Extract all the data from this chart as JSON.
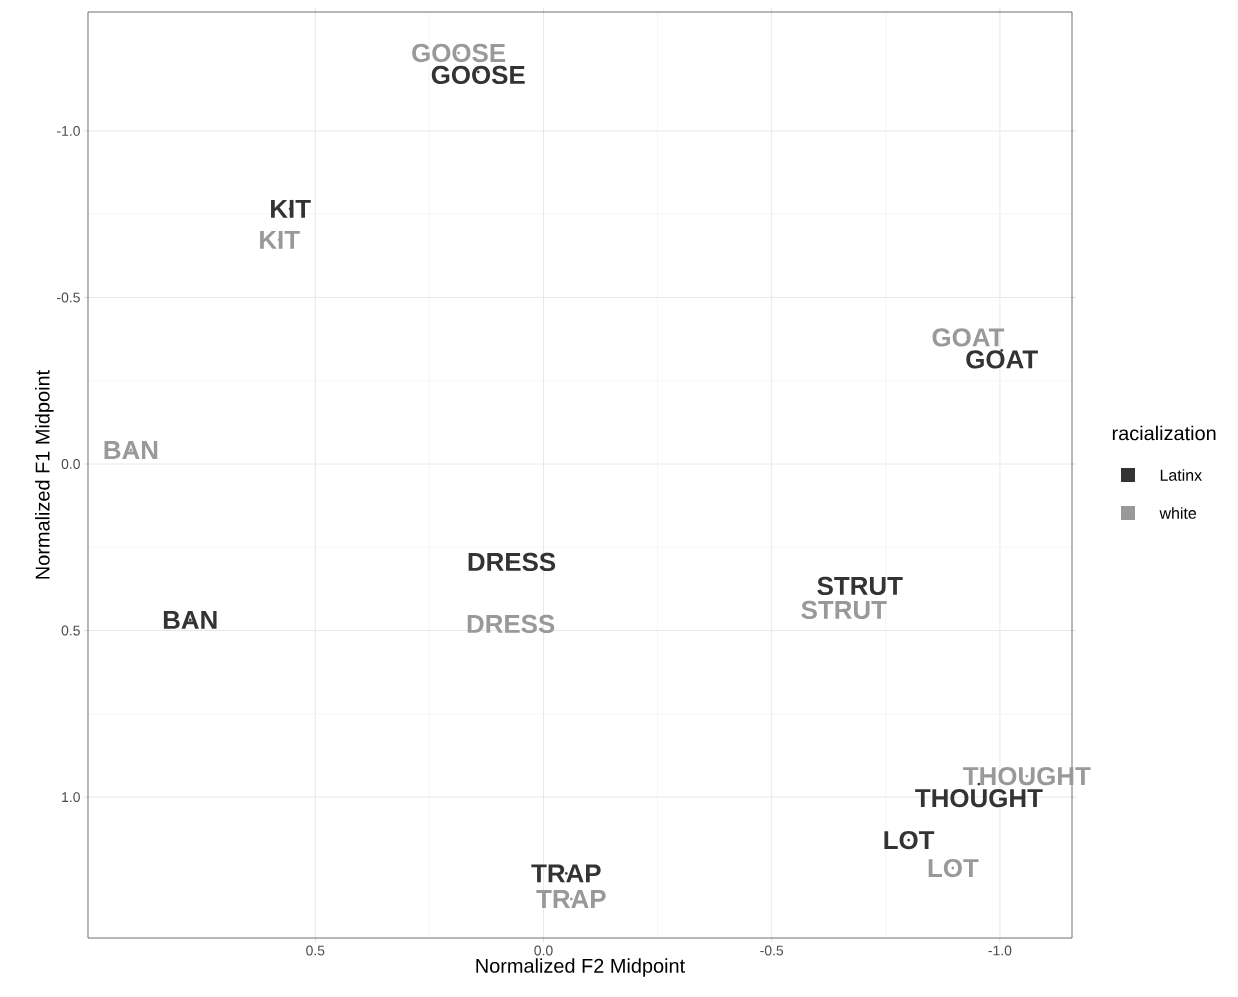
{
  "chart_data": {
    "type": "scatter",
    "xlabel": "Normalized F2 Midpoint",
    "ylabel": "Normalized F1 Midpoint",
    "legend_title": "racialization",
    "series": [
      {
        "name": "Latinx",
        "color": "#333333",
        "x": [
          0.143,
          0.555,
          -1.004,
          0.774,
          0.07,
          -0.693,
          -0.954,
          -0.8,
          -0.05
        ],
        "values": [
          -1.177,
          -0.766,
          -0.341,
          0.468,
          0.294,
          0.366,
          0.961,
          1.129,
          1.229
        ],
        "value_labels": [
          "GOOSE",
          "KIT",
          "GOAT",
          "BAN",
          "DRESS",
          "STRUT",
          "THOUGHT",
          "LOT",
          "TRAP"
        ]
      },
      {
        "name": "white",
        "color": "#999999",
        "x": [
          0.186,
          0.579,
          -0.93,
          0.904,
          0.072,
          -0.658,
          -1.059,
          -0.897,
          -0.061
        ],
        "values": [
          -1.234,
          -0.673,
          -0.38,
          -0.042,
          0.48,
          0.438,
          0.937,
          1.213,
          1.306
        ],
        "value_labels": [
          "GOOSE",
          "KIT",
          "GOAT",
          "BAN",
          "DRESS",
          "STRUT",
          "THOUGHT",
          "LOT",
          "TRAP"
        ]
      }
    ],
    "xlim": [
      0.998,
      -1.158
    ],
    "ylim": [
      1.423,
      -1.357
    ],
    "xticks": [
      0.5,
      {
        "value": 0,
        "label": "0.0"
      },
      -0.5,
      {
        "value": -1,
        "label": "-1.0"
      }
    ],
    "yticks": [
      {
        "value": -1,
        "label": "-1.0"
      },
      -0.5,
      {
        "value": 0,
        "label": "0.0"
      },
      0.5,
      {
        "value": 1,
        "label": "1.0"
      }
    ],
    "grid": true,
    "legend": "right"
  }
}
